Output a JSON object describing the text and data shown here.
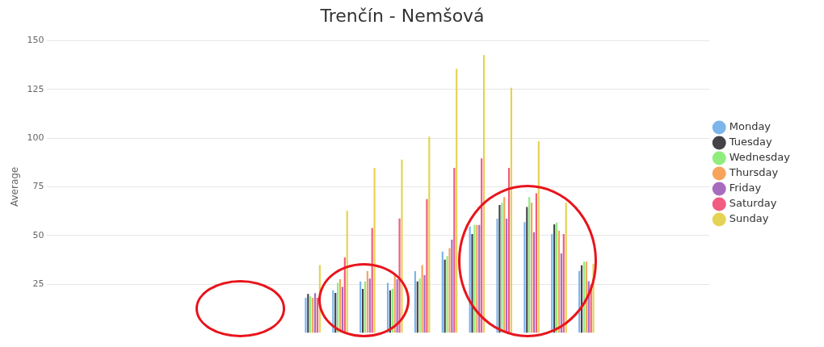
{
  "chart_data": {
    "type": "bar",
    "title": "Trenčín - Nemšová",
    "ylabel": "Average",
    "categories": [
      null,
      null,
      null,
      null,
      null,
      null,
      null,
      null,
      null,
      null,
      null,
      null,
      null,
      null,
      null,
      null,
      null,
      null,
      null,
      null,
      null,
      null,
      null,
      null
    ],
    "series": [
      {
        "name": "Monday",
        "color": "#7cb5ec",
        "values": [
          null,
          null,
          null,
          null,
          null,
          null,
          null,
          null,
          null,
          18,
          21.8,
          26.4,
          25.7,
          31.7,
          41.7,
          54.5,
          58.6,
          56.8,
          50.7,
          31.8,
          null,
          null,
          null,
          null
        ]
      },
      {
        "name": "Tuesday",
        "color": "#434348",
        "values": [
          null,
          null,
          null,
          null,
          null,
          null,
          null,
          null,
          null,
          20,
          20.5,
          22.5,
          21.8,
          26.4,
          37.6,
          50.7,
          65.6,
          64.6,
          55.7,
          34.7,
          null,
          null,
          null,
          null
        ]
      },
      {
        "name": "Wednesday",
        "color": "#90ed7d",
        "values": [
          null,
          null,
          null,
          null,
          null,
          null,
          null,
          null,
          null,
          18.7,
          25.7,
          26.4,
          22.5,
          27.8,
          39.4,
          55.4,
          66.8,
          69.7,
          56.6,
          36.5,
          null,
          null,
          null,
          null
        ]
      },
      {
        "name": "Thursday",
        "color": "#f7a35c",
        "values": [
          null,
          null,
          null,
          null,
          null,
          null,
          null,
          null,
          null,
          18,
          27.5,
          31.7,
          30.6,
          34.8,
          43.5,
          55.4,
          69.7,
          66.8,
          52.5,
          36.5,
          null,
          null,
          null,
          null
        ]
      },
      {
        "name": "Friday",
        "color": "#a86cbf",
        "values": [
          null,
          null,
          null,
          null,
          null,
          null,
          null,
          null,
          null,
          20.4,
          23.6,
          27.8,
          27.5,
          29.6,
          47.8,
          55.4,
          58.6,
          51.6,
          40.8,
          26.5,
          null,
          null,
          null,
          null
        ]
      },
      {
        "name": "Saturday",
        "color": "#f15c80",
        "values": [
          null,
          null,
          null,
          null,
          null,
          null,
          null,
          null,
          null,
          18,
          38.7,
          53.8,
          58.7,
          68.6,
          84.7,
          89.6,
          84.7,
          71.6,
          50.7,
          24.8,
          null,
          null,
          null,
          null
        ]
      },
      {
        "name": "Sunday",
        "color": "#e4d354",
        "values": [
          null,
          null,
          null,
          null,
          null,
          null,
          null,
          null,
          null,
          34.8,
          62.6,
          84.7,
          88.9,
          100.8,
          135.6,
          142.6,
          125.8,
          98.5,
          66.9,
          35.5,
          null,
          null,
          null,
          null
        ]
      }
    ],
    "ylim": [
      0,
      150
    ],
    "yticks": [
      25,
      50,
      75,
      100,
      125,
      150
    ],
    "grid": "y",
    "legend": "right"
  }
}
